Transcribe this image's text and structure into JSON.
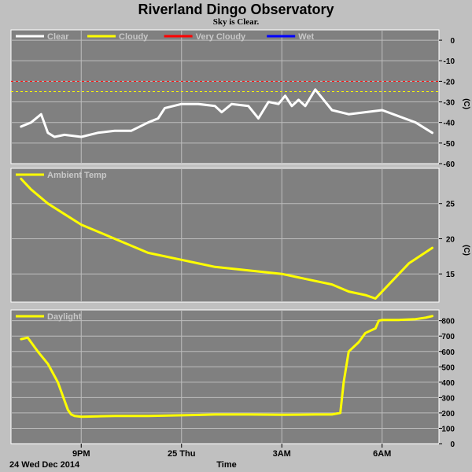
{
  "title": "Riverland Dingo Observatory",
  "subtitle": "Sky is Clear.",
  "colors": {
    "background": "#c0c0c0",
    "plot_bg": "#808080",
    "grid": "#bdbdbd",
    "clear": "#ffffff",
    "cloudy": "#ffff00",
    "very_cloudy": "#ff0000",
    "wet": "#0000ff",
    "ambient": "#ffff00",
    "daylight": "#ffff00"
  },
  "chart_data": [
    {
      "type": "line",
      "panel": "cloud",
      "ylabel": "(C)",
      "ylim": [
        -60,
        5
      ],
      "yticks": [
        0,
        -10,
        -20,
        -30,
        -40,
        -50,
        -60
      ],
      "legend": [
        "Clear",
        "Cloudy",
        "Very Cloudy",
        "Wet"
      ],
      "thresholds": [
        {
          "name": "Very Cloudy",
          "value": -20
        },
        {
          "name": "Cloudy",
          "value": -25
        }
      ],
      "series": [
        {
          "name": "Clear",
          "x": [
            -1.8,
            -1.5,
            -1.2,
            -1.0,
            -0.8,
            -0.5,
            0.0,
            0.5,
            1.0,
            1.5,
            2.0,
            2.3,
            2.5,
            3.0,
            3.5,
            4.0,
            4.2,
            4.5,
            5.0,
            5.3,
            5.6,
            5.9,
            6.1,
            6.3,
            6.5,
            6.7,
            7.0,
            7.5,
            8.0,
            8.5,
            9.0,
            9.5,
            10.0,
            10.5
          ],
          "y": [
            -42,
            -40,
            -36,
            -45,
            -47,
            -46,
            -47,
            -45,
            -44,
            -44,
            -40,
            -38,
            -33,
            -31,
            -31,
            -32,
            -35,
            -31,
            -32,
            -38,
            -30,
            -31,
            -27,
            -32,
            -29,
            -32,
            -24,
            -34,
            -36,
            -35,
            -34,
            -37,
            -40,
            -45
          ]
        }
      ]
    },
    {
      "type": "line",
      "panel": "ambient",
      "ylabel": "(C)",
      "ylim": [
        11,
        30
      ],
      "yticks": [
        25,
        20,
        15
      ],
      "legend": [
        "Ambient Temp"
      ],
      "series": [
        {
          "name": "Ambient Temp",
          "x": [
            -1.8,
            -1.5,
            -1.0,
            -0.5,
            0.0,
            0.5,
            1.0,
            2.0,
            3.0,
            4.0,
            5.0,
            6.0,
            7.0,
            7.5,
            8.0,
            8.5,
            8.8,
            9.3,
            9.8,
            10.5
          ],
          "y": [
            28.5,
            27,
            25,
            23.5,
            22,
            21,
            20,
            18,
            17,
            16,
            15.5,
            15,
            14,
            13.5,
            12.5,
            12,
            11.5,
            14,
            16.5,
            18.7
          ]
        }
      ]
    },
    {
      "type": "line",
      "panel": "daylight",
      "ylim": [
        0,
        870
      ],
      "yticks": [
        800,
        700,
        600,
        500,
        400,
        300,
        200,
        100,
        0
      ],
      "legend": [
        "Daylight"
      ],
      "series": [
        {
          "name": "Daylight",
          "x": [
            -1.8,
            -1.6,
            -1.3,
            -1.0,
            -0.7,
            -0.4,
            -0.3,
            -0.2,
            0.0,
            0.5,
            1.0,
            2.0,
            3.0,
            4.0,
            5.0,
            6.0,
            7.0,
            7.5,
            7.75,
            7.85,
            8.0,
            8.3,
            8.5,
            8.8,
            8.9,
            9.0,
            9.5,
            10.0,
            10.3,
            10.5
          ],
          "y": [
            680,
            690,
            600,
            520,
            400,
            220,
            190,
            180,
            175,
            178,
            180,
            180,
            185,
            190,
            190,
            188,
            190,
            190,
            200,
            400,
            600,
            660,
            720,
            750,
            800,
            805,
            805,
            810,
            820,
            830
          ]
        }
      ]
    }
  ],
  "x_axis": {
    "ticks": [
      {
        "label": "9PM",
        "value": 0
      },
      {
        "label": "25 Thu",
        "value": 3
      },
      {
        "label": "3AM",
        "value": 6
      },
      {
        "label": "6AM",
        "value": 9
      }
    ],
    "xlim": [
      -2.1,
      10.7
    ],
    "xlabel": "Time",
    "date_label": "24 Wed Dec 2014"
  }
}
